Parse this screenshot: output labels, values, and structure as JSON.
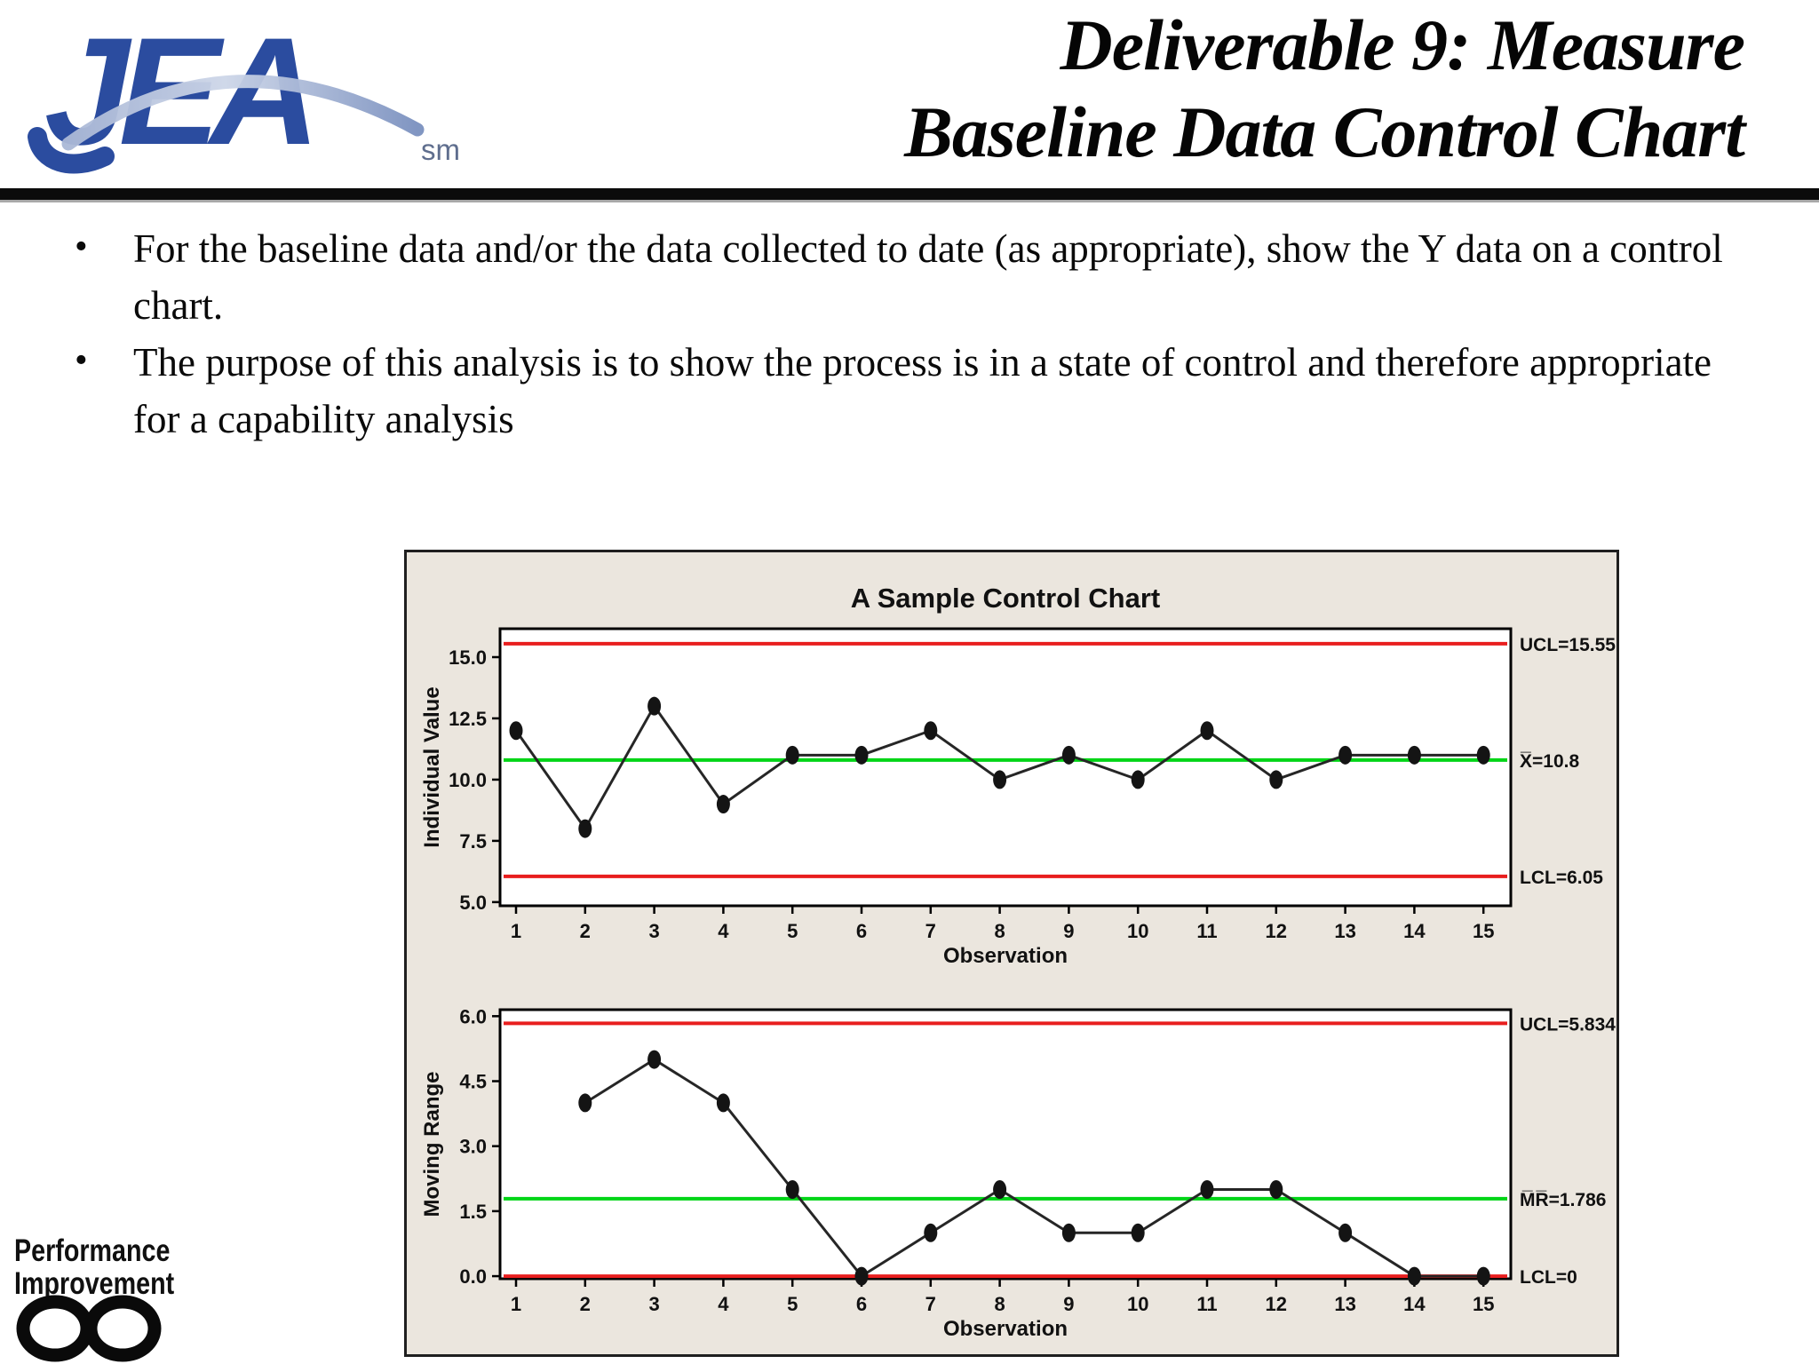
{
  "header": {
    "logo_text": "JEA",
    "logo_mark": "sm",
    "title_line1": "Deliverable 9: Measure",
    "title_line2": "Baseline Data Control Chart"
  },
  "bullets": [
    "For the baseline data and/or the data collected to date (as appropriate), show the Y data on a control chart.",
    "The purpose of this analysis is to show the process is in a state of control and therefore appropriate for a capability analysis"
  ],
  "footer": {
    "brand_line1": "Performance",
    "brand_line2": "Improvement"
  },
  "chart_data": [
    {
      "type": "line",
      "title": "A Sample Control Chart",
      "xlabel": "Observation",
      "ylabel": "Individual Value",
      "x": [
        1,
        2,
        3,
        4,
        5,
        6,
        7,
        8,
        9,
        10,
        11,
        12,
        13,
        14,
        15
      ],
      "values": [
        12,
        8,
        13,
        9,
        11,
        11,
        12,
        10,
        11,
        10,
        12,
        10,
        11,
        11,
        11
      ],
      "xticks": [
        "1",
        "2",
        "3",
        "4",
        "5",
        "6",
        "7",
        "8",
        "9",
        "10",
        "11",
        "12",
        "13",
        "14",
        "15"
      ],
      "yticks": [
        "15.0",
        "12.5",
        "10.0",
        "7.5",
        "5.0"
      ],
      "ytick_values": [
        15.0,
        12.5,
        10.0,
        7.5,
        5.0
      ],
      "ylim": [
        4.85,
        16.16
      ],
      "grid": false,
      "legend_position": "right-annotations",
      "ucl": {
        "value": 15.55,
        "label": "UCL=15.55",
        "color": "#e81e1e"
      },
      "center": {
        "value": 10.8,
        "label": "X̅=10.8",
        "color": "#00d516"
      },
      "lcl": {
        "value": 6.05,
        "label": "LCL=6.05",
        "color": "#e81e1e"
      },
      "line_color": "#262626",
      "marker_color": "#141414",
      "panel_background": "#ffffff",
      "figure_background": "#ebe6de"
    },
    {
      "type": "line",
      "title": "",
      "xlabel": "Observation",
      "ylabel": "Moving Range",
      "x": [
        2,
        3,
        4,
        5,
        6,
        7,
        8,
        9,
        10,
        11,
        12,
        13,
        14,
        15
      ],
      "values": [
        4,
        5,
        4,
        2,
        0,
        1,
        2,
        1,
        1,
        2,
        2,
        1,
        0,
        0
      ],
      "xticks": [
        "1",
        "2",
        "3",
        "4",
        "5",
        "6",
        "7",
        "8",
        "9",
        "10",
        "11",
        "12",
        "13",
        "14",
        "15"
      ],
      "yticks": [
        "6.0",
        "4.5",
        "3.0",
        "1.5",
        "0.0"
      ],
      "ytick_values": [
        6.0,
        4.5,
        3.0,
        1.5,
        0.0
      ],
      "ylim": [
        -0.06,
        6.15
      ],
      "grid": false,
      "legend_position": "right-annotations",
      "ucl": {
        "value": 5.834,
        "label": "UCL=5.834",
        "color": "#e81e1e"
      },
      "center": {
        "value": 1.786,
        "label": "M̅R̅=1.786",
        "color": "#00d516"
      },
      "lcl": {
        "value": 0,
        "label": "LCL=0",
        "color": "#e81e1e"
      },
      "line_color": "#262626",
      "marker_color": "#141414",
      "panel_background": "#ffffff",
      "figure_background": "#ebe6de"
    }
  ]
}
